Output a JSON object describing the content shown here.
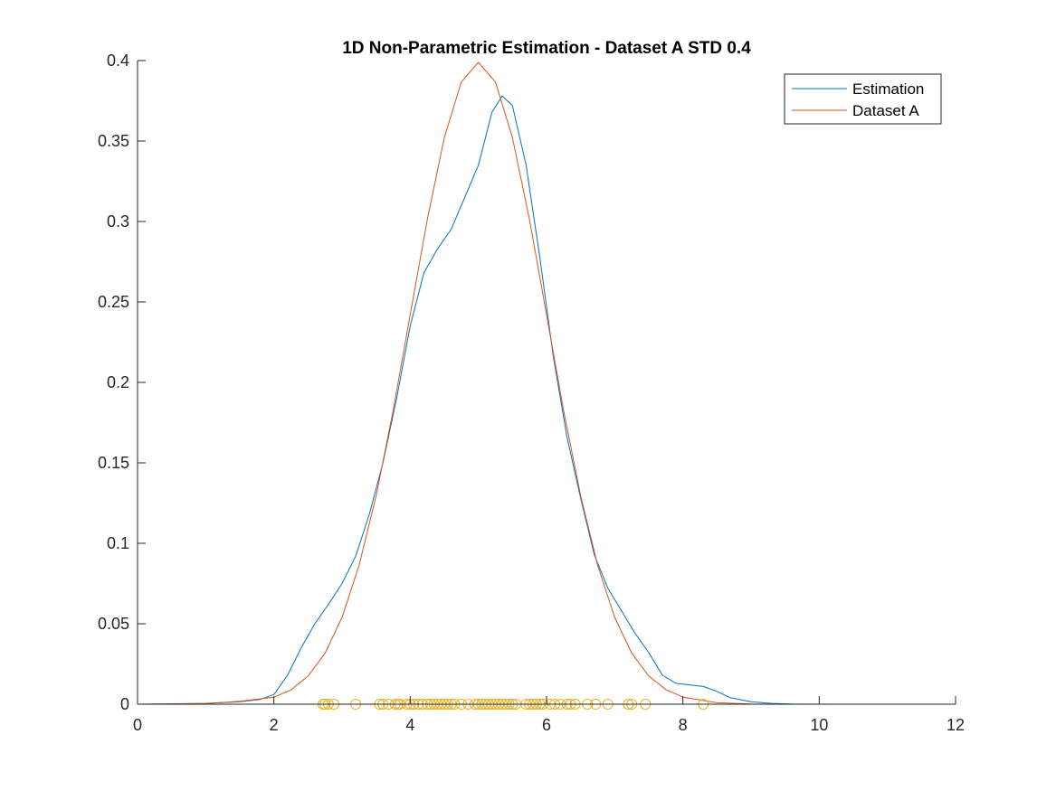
{
  "chart_data": {
    "type": "line",
    "title": "1D Non-Parametric Estimation - Dataset A STD 0.4",
    "xlabel": "",
    "ylabel": "",
    "xlim": [
      0,
      12
    ],
    "ylim": [
      0,
      0.4
    ],
    "xticks": [
      0,
      2,
      4,
      6,
      8,
      10,
      12
    ],
    "yticks": [
      0,
      0.05,
      0.1,
      0.15,
      0.2,
      0.25,
      0.3,
      0.35,
      0.4
    ],
    "grid": false,
    "legend_position": "top-right",
    "series": [
      {
        "name": "Estimation",
        "color": "#0072BD",
        "x": [
          0,
          1,
          1.5,
          1.8,
          2.0,
          2.2,
          2.4,
          2.6,
          2.8,
          3.0,
          3.2,
          3.4,
          3.6,
          3.8,
          4.0,
          4.2,
          4.4,
          4.6,
          4.8,
          5.0,
          5.2,
          5.35,
          5.5,
          5.7,
          5.9,
          6.1,
          6.3,
          6.5,
          6.7,
          6.9,
          7.1,
          7.3,
          7.5,
          7.7,
          7.9,
          8.1,
          8.3,
          8.5,
          8.7,
          9.0,
          9.3,
          9.6,
          10.3
        ],
        "y": [
          0,
          0.0005,
          0.0015,
          0.003,
          0.006,
          0.018,
          0.035,
          0.05,
          0.062,
          0.075,
          0.092,
          0.118,
          0.15,
          0.19,
          0.235,
          0.268,
          0.283,
          0.295,
          0.315,
          0.335,
          0.368,
          0.378,
          0.372,
          0.335,
          0.278,
          0.216,
          0.166,
          0.128,
          0.093,
          0.072,
          0.058,
          0.044,
          0.032,
          0.018,
          0.013,
          0.012,
          0.011,
          0.008,
          0.004,
          0.0015,
          0.0005,
          0.0001,
          0
        ]
      },
      {
        "name": "Dataset A",
        "color": "#D95319",
        "x": [
          0,
          1,
          1.5,
          2.0,
          2.25,
          2.5,
          2.75,
          3.0,
          3.25,
          3.5,
          3.75,
          4.0,
          4.25,
          4.5,
          4.75,
          5.0,
          5.25,
          5.5,
          5.75,
          6.0,
          6.25,
          6.5,
          6.75,
          7.0,
          7.25,
          7.5,
          7.75,
          8.0,
          8.5,
          9.0,
          9.5,
          10.3
        ],
        "y": [
          0,
          0.0004,
          0.0018,
          0.0044,
          0.0088,
          0.0175,
          0.0317,
          0.054,
          0.0863,
          0.1295,
          0.1826,
          0.242,
          0.3011,
          0.3521,
          0.3867,
          0.3989,
          0.3867,
          0.3521,
          0.3011,
          0.242,
          0.1826,
          0.1295,
          0.0863,
          0.054,
          0.0317,
          0.0175,
          0.0091,
          0.0044,
          0.0009,
          0.0001,
          2e-05,
          0
        ]
      },
      {
        "name": "",
        "kind": "markers",
        "color": "#EDB120",
        "x": [
          2.72,
          2.75,
          2.8,
          2.88,
          3.2,
          3.55,
          3.6,
          3.68,
          3.78,
          3.82,
          3.85,
          3.95,
          4.0,
          4.05,
          4.12,
          4.18,
          4.25,
          4.3,
          4.35,
          4.4,
          4.45,
          4.5,
          4.55,
          4.6,
          4.65,
          4.75,
          4.85,
          4.95,
          5.0,
          5.05,
          5.1,
          5.15,
          5.2,
          5.25,
          5.3,
          5.35,
          5.4,
          5.45,
          5.5,
          5.55,
          5.7,
          5.75,
          5.8,
          5.85,
          5.9,
          5.95,
          6.05,
          6.12,
          6.2,
          6.3,
          6.35,
          6.42,
          6.6,
          6.72,
          6.9,
          7.2,
          7.25,
          7.45,
          8.3
        ],
        "y": [
          0,
          0,
          0,
          0,
          0,
          0,
          0,
          0,
          0,
          0,
          0,
          0,
          0,
          0,
          0,
          0,
          0,
          0,
          0,
          0,
          0,
          0,
          0,
          0,
          0,
          0,
          0,
          0,
          0,
          0,
          0,
          0,
          0,
          0,
          0,
          0,
          0,
          0,
          0,
          0,
          0,
          0,
          0,
          0,
          0,
          0,
          0,
          0,
          0,
          0,
          0,
          0,
          0,
          0,
          0,
          0,
          0,
          0,
          0
        ]
      }
    ]
  }
}
